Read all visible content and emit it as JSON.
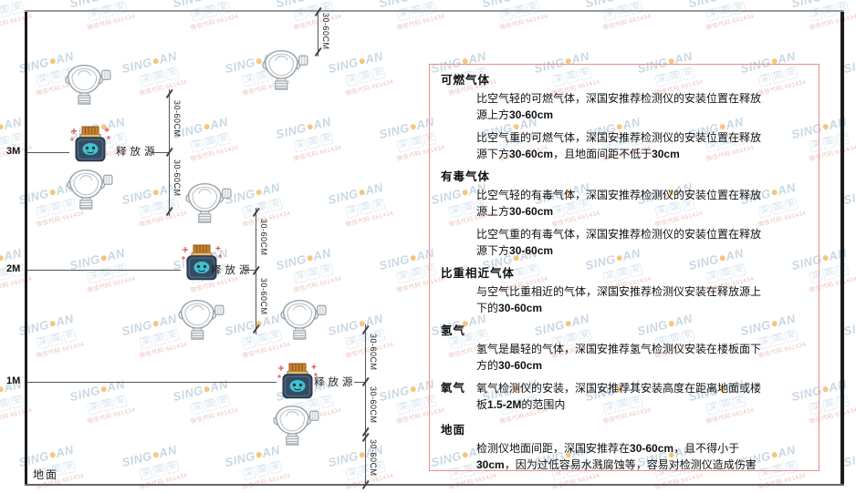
{
  "watermark": {
    "brand_left": "SING",
    "brand_right": "AN",
    "cjk": "深国安",
    "red_line": "微信代码:661434",
    "dot_color": "#f0a42e",
    "text_color": "#a9c0d3",
    "red_color": "#e59a9a"
  },
  "diagram": {
    "dim_label": "30-60CM",
    "height_label_3m": "3M",
    "height_label_2m": "2M",
    "height_label_1m": "1M",
    "ground_label": "地面",
    "release_source_label": "释放源"
  },
  "panel": {
    "border_color": "#ef8b8b",
    "sections": [
      {
        "heading": "可燃气体",
        "paragraphs": [
          [
            {
              "t": "比空气轻的可燃气体，深国安推荐检测仪的安装位置在释放源上方",
              "b": false
            },
            {
              "t": "30-60cm",
              "b": true
            }
          ],
          [
            {
              "t": "比空气重的可燃气体，深国安推荐检测仪的安装位置在释放源下方",
              "b": false
            },
            {
              "t": "30-60cm",
              "b": true
            },
            {
              "t": "，且地面间距不低于",
              "b": false
            },
            {
              "t": "30cm",
              "b": true
            }
          ]
        ]
      },
      {
        "heading": "有毒气体",
        "paragraphs": [
          [
            {
              "t": "比空气轻的有毒气体，深国安推荐检测仪的安装位置在释放源上方",
              "b": false
            },
            {
              "t": "30-60cm",
              "b": true
            }
          ],
          [
            {
              "t": "比空气重的有毒气体，深国安推荐检测仪的安装位置在释放源下方",
              "b": false
            },
            {
              "t": "30-60cm",
              "b": true
            }
          ]
        ]
      },
      {
        "heading": "比重相近气体",
        "paragraphs": [
          [
            {
              "t": "与空气比重相近的气体，深国安推荐检测仪安装在释放源上下的",
              "b": false
            },
            {
              "t": "30-60cm",
              "b": true
            }
          ]
        ]
      },
      {
        "heading": "氢气",
        "paragraphs": [
          [
            {
              "t": "氢气是最轻的气体，深国安推荐氢气检测仪安装在楼板面下方的",
              "b": false
            },
            {
              "t": "30-60cm",
              "b": true
            }
          ]
        ]
      },
      {
        "heading": "氧气",
        "inline": true,
        "paragraphs": [
          [
            {
              "t": "氧气检测仪的安装，深国安推荐其安装高度在距离地面或楼板",
              "b": false
            },
            {
              "t": "1.5-2M",
              "b": true
            },
            {
              "t": "的范围内",
              "b": false
            }
          ]
        ]
      },
      {
        "heading": "地面",
        "paragraphs": [
          [
            {
              "t": "检测仪地面间距，深国安推荐在",
              "b": false
            },
            {
              "t": "30-60cm",
              "b": true
            },
            {
              "t": "，且不得小于",
              "b": false
            },
            {
              "t": "30cm",
              "b": true
            },
            {
              "t": "，因为过低容易水溅腐蚀等，容易对检测仪造成伤害",
              "b": false
            }
          ]
        ]
      }
    ]
  }
}
